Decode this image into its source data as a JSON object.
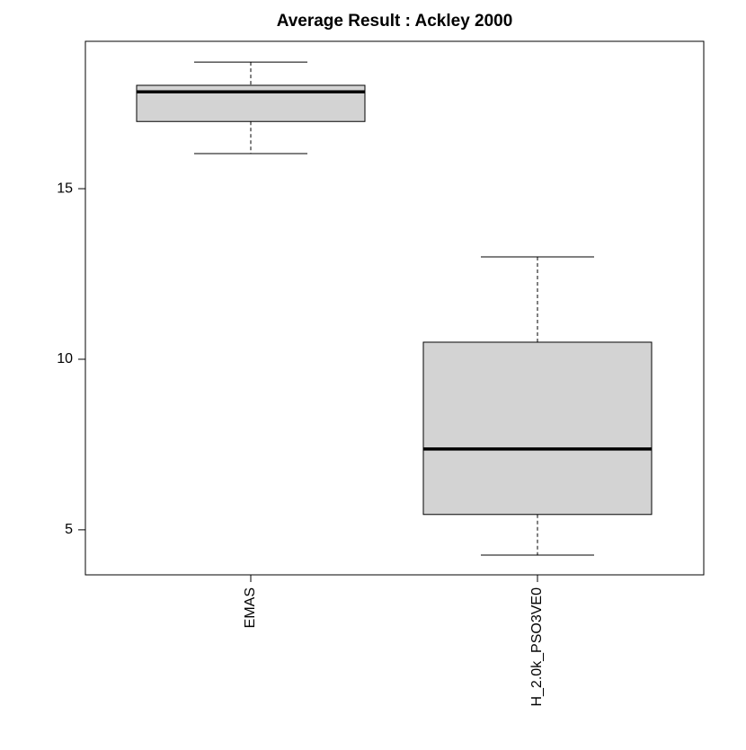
{
  "chart_data": {
    "type": "box",
    "title": "Average Result : Ackley 2000",
    "categories": [
      "EMAS",
      "H_2.0k_PSO3VE0"
    ],
    "boxes": [
      {
        "min": 16.03,
        "q1": 16.97,
        "median": 17.84,
        "q3": 18.03,
        "max": 18.71
      },
      {
        "min": 4.26,
        "q1": 5.45,
        "median": 7.37,
        "q3": 10.5,
        "max": 13.0
      }
    ],
    "color": "#d3d3d3",
    "ylim": [
      3.68,
      19.32
    ],
    "yticks": [
      5,
      10,
      15
    ]
  }
}
